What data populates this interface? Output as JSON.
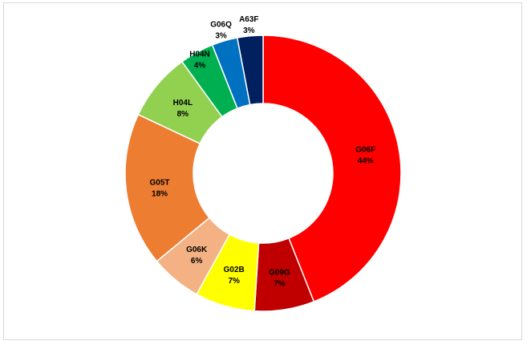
{
  "chart_data": {
    "type": "pie",
    "donut": true,
    "legend": "none",
    "start_angle_deg": 0,
    "direction": "clockwise",
    "slices": [
      {
        "name": "G06F",
        "value": 44,
        "label": "44%",
        "color": "#ff0000"
      },
      {
        "name": "G09G",
        "value": 7,
        "label": "7%",
        "color": "#c00000"
      },
      {
        "name": "G02B",
        "value": 7,
        "label": "7%",
        "color": "#ffff00"
      },
      {
        "name": "G06K",
        "value": 6,
        "label": "6%",
        "color": "#f4b183"
      },
      {
        "name": "G05T",
        "value": 18,
        "label": "18%",
        "color": "#ed7d31"
      },
      {
        "name": "H04L",
        "value": 8,
        "label": "8%",
        "color": "#92d050"
      },
      {
        "name": "H04N",
        "value": 4,
        "label": "4%",
        "color": "#00b050"
      },
      {
        "name": "G06Q",
        "value": 3,
        "label": "3%",
        "color": "#0070c0"
      },
      {
        "name": "A63F",
        "value": 3,
        "label": "3%",
        "color": "#002060"
      }
    ]
  }
}
